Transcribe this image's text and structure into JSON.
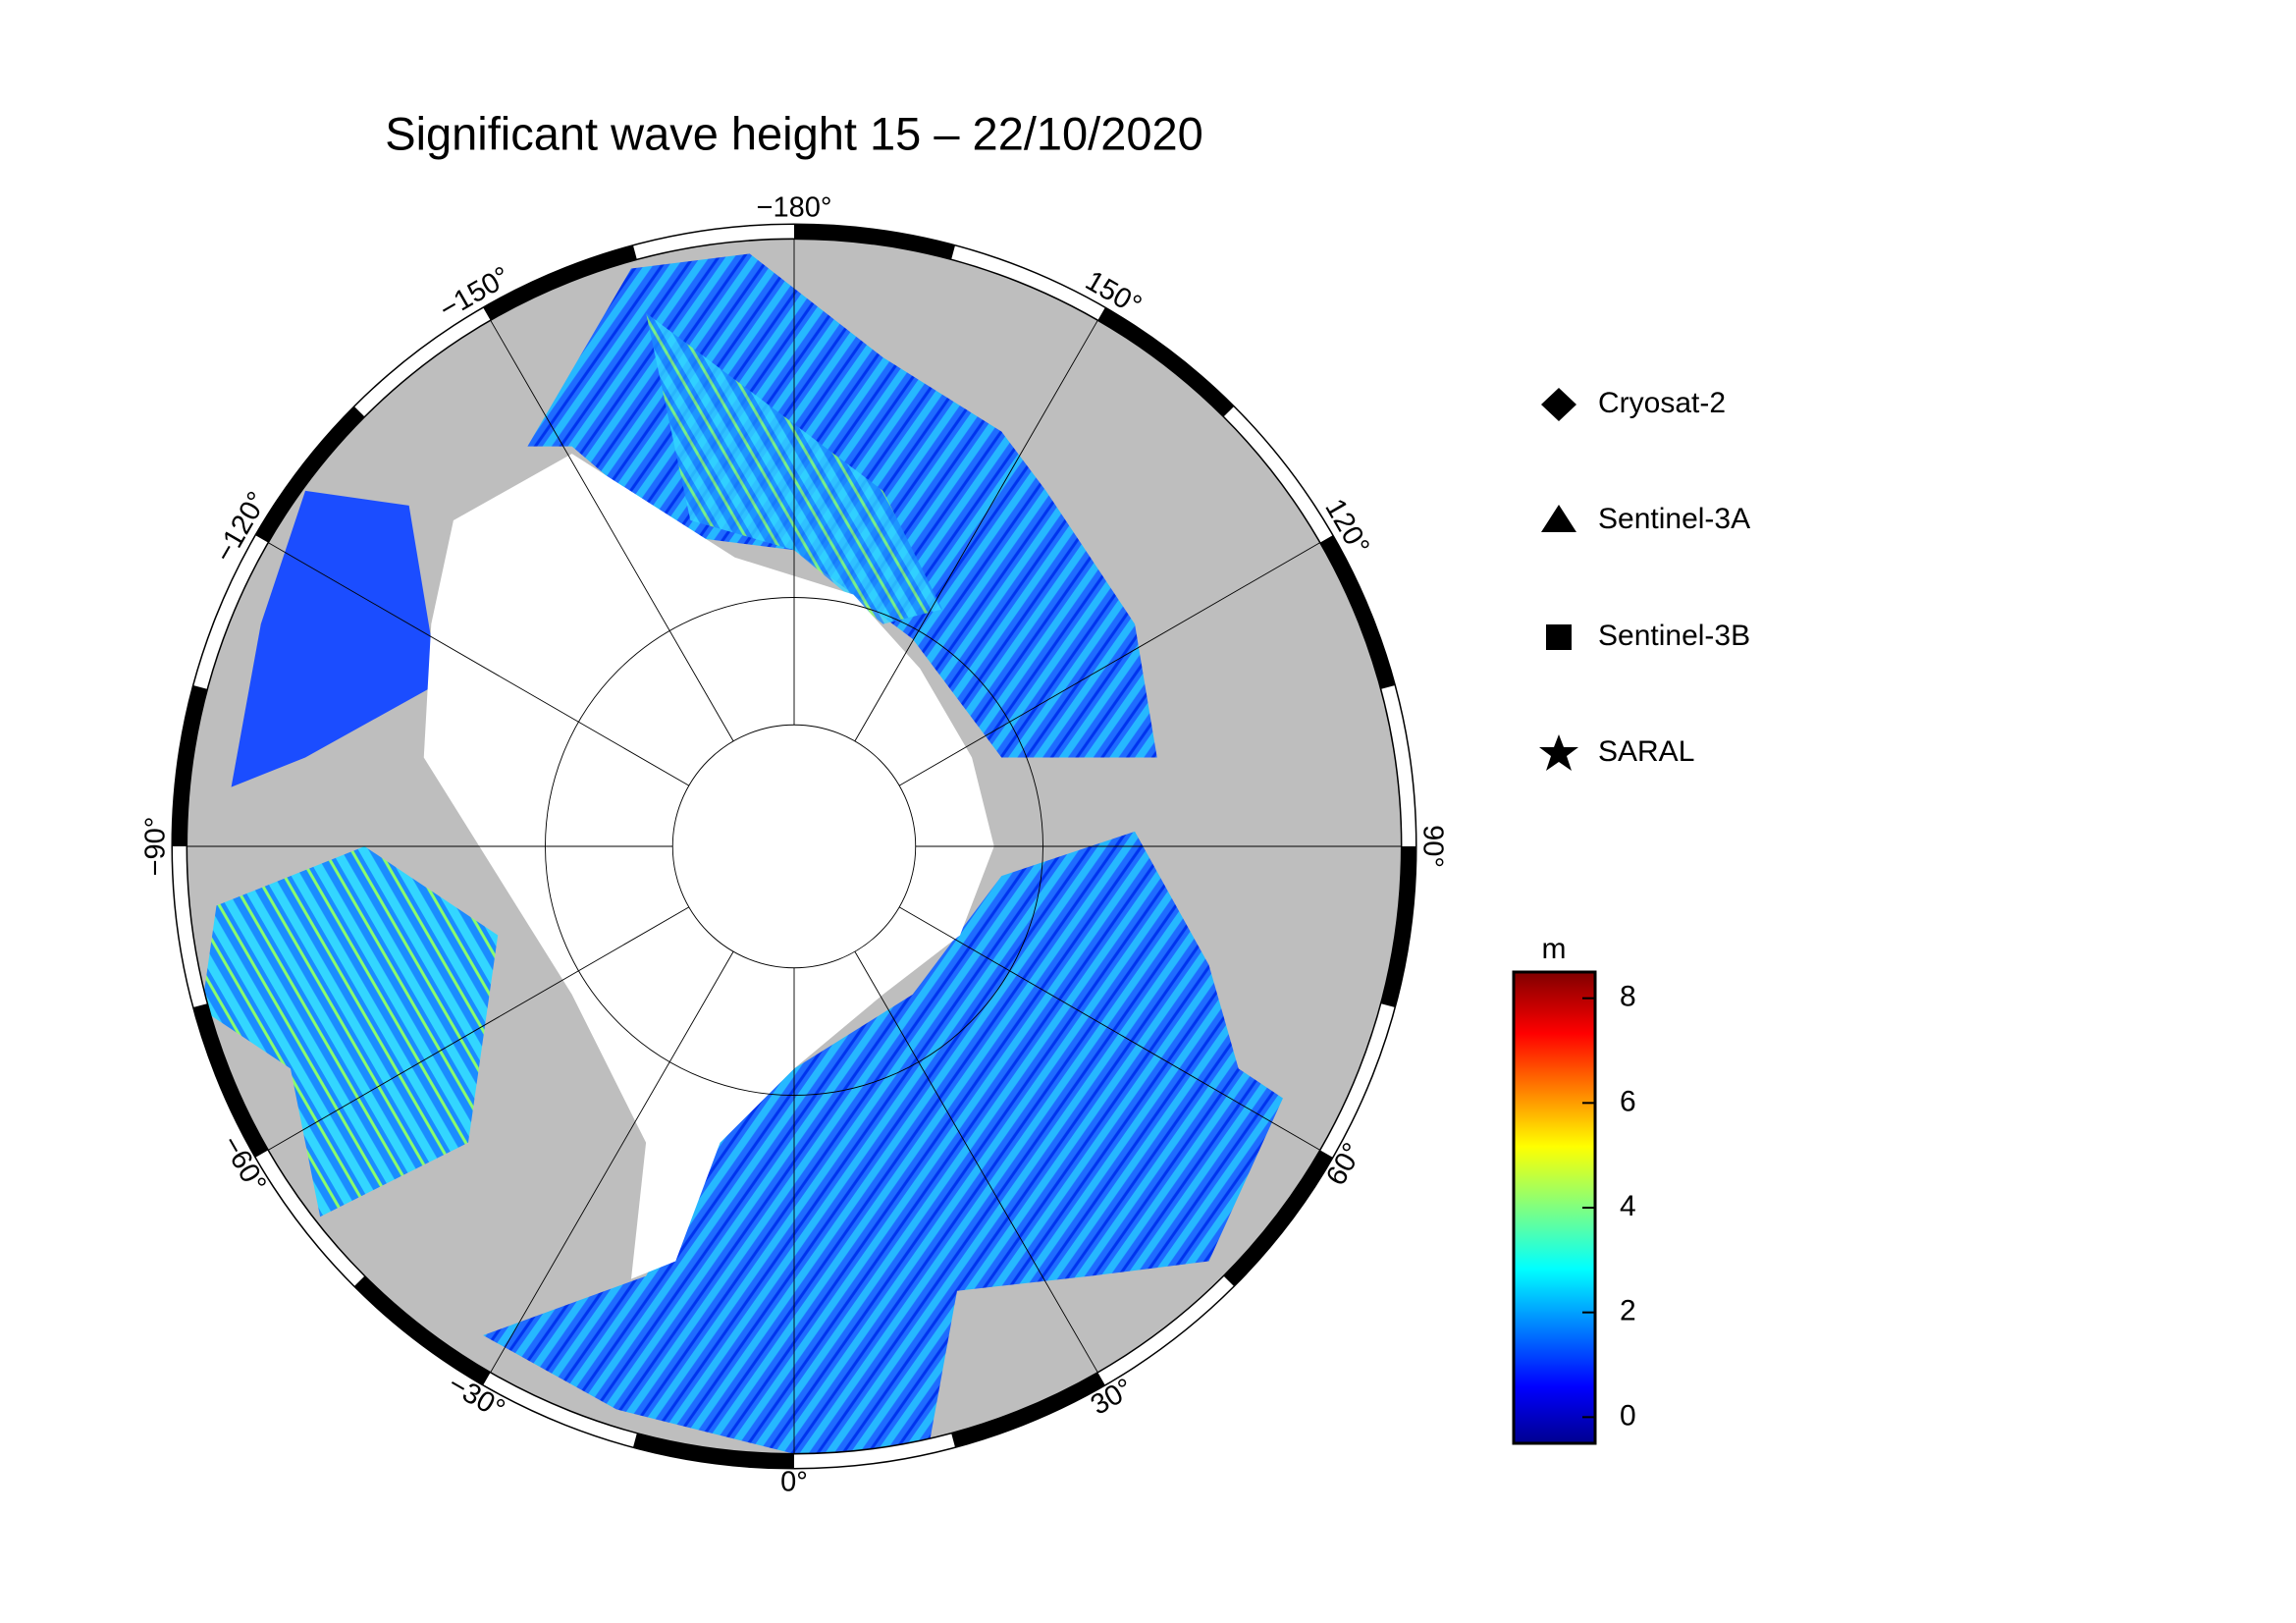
{
  "title": "Significant wave height 15 – 22/10/2020",
  "lon_ticks": [
    {
      "value": -180,
      "label": "−180°"
    },
    {
      "value": -150,
      "label": "−150°"
    },
    {
      "value": -120,
      "label": "−120°"
    },
    {
      "value": -90,
      "label": "−90°"
    },
    {
      "value": -60,
      "label": "−60°"
    },
    {
      "value": -30,
      "label": "−30°"
    },
    {
      "value": 0,
      "label": "0°"
    },
    {
      "value": 30,
      "label": "30°"
    },
    {
      "value": 60,
      "label": "60°"
    },
    {
      "value": 90,
      "label": "90°"
    },
    {
      "value": 120,
      "label": "120°"
    },
    {
      "value": 150,
      "label": "150°"
    }
  ],
  "legend": [
    "Cryosat-2",
    "Sentinel-3A",
    "Sentinel-3B",
    "SARAL"
  ],
  "colorbar": {
    "label": "m",
    "lim": [
      -0.5,
      8.5
    ],
    "ticks": [
      0,
      2,
      4,
      6,
      8
    ]
  }
}
